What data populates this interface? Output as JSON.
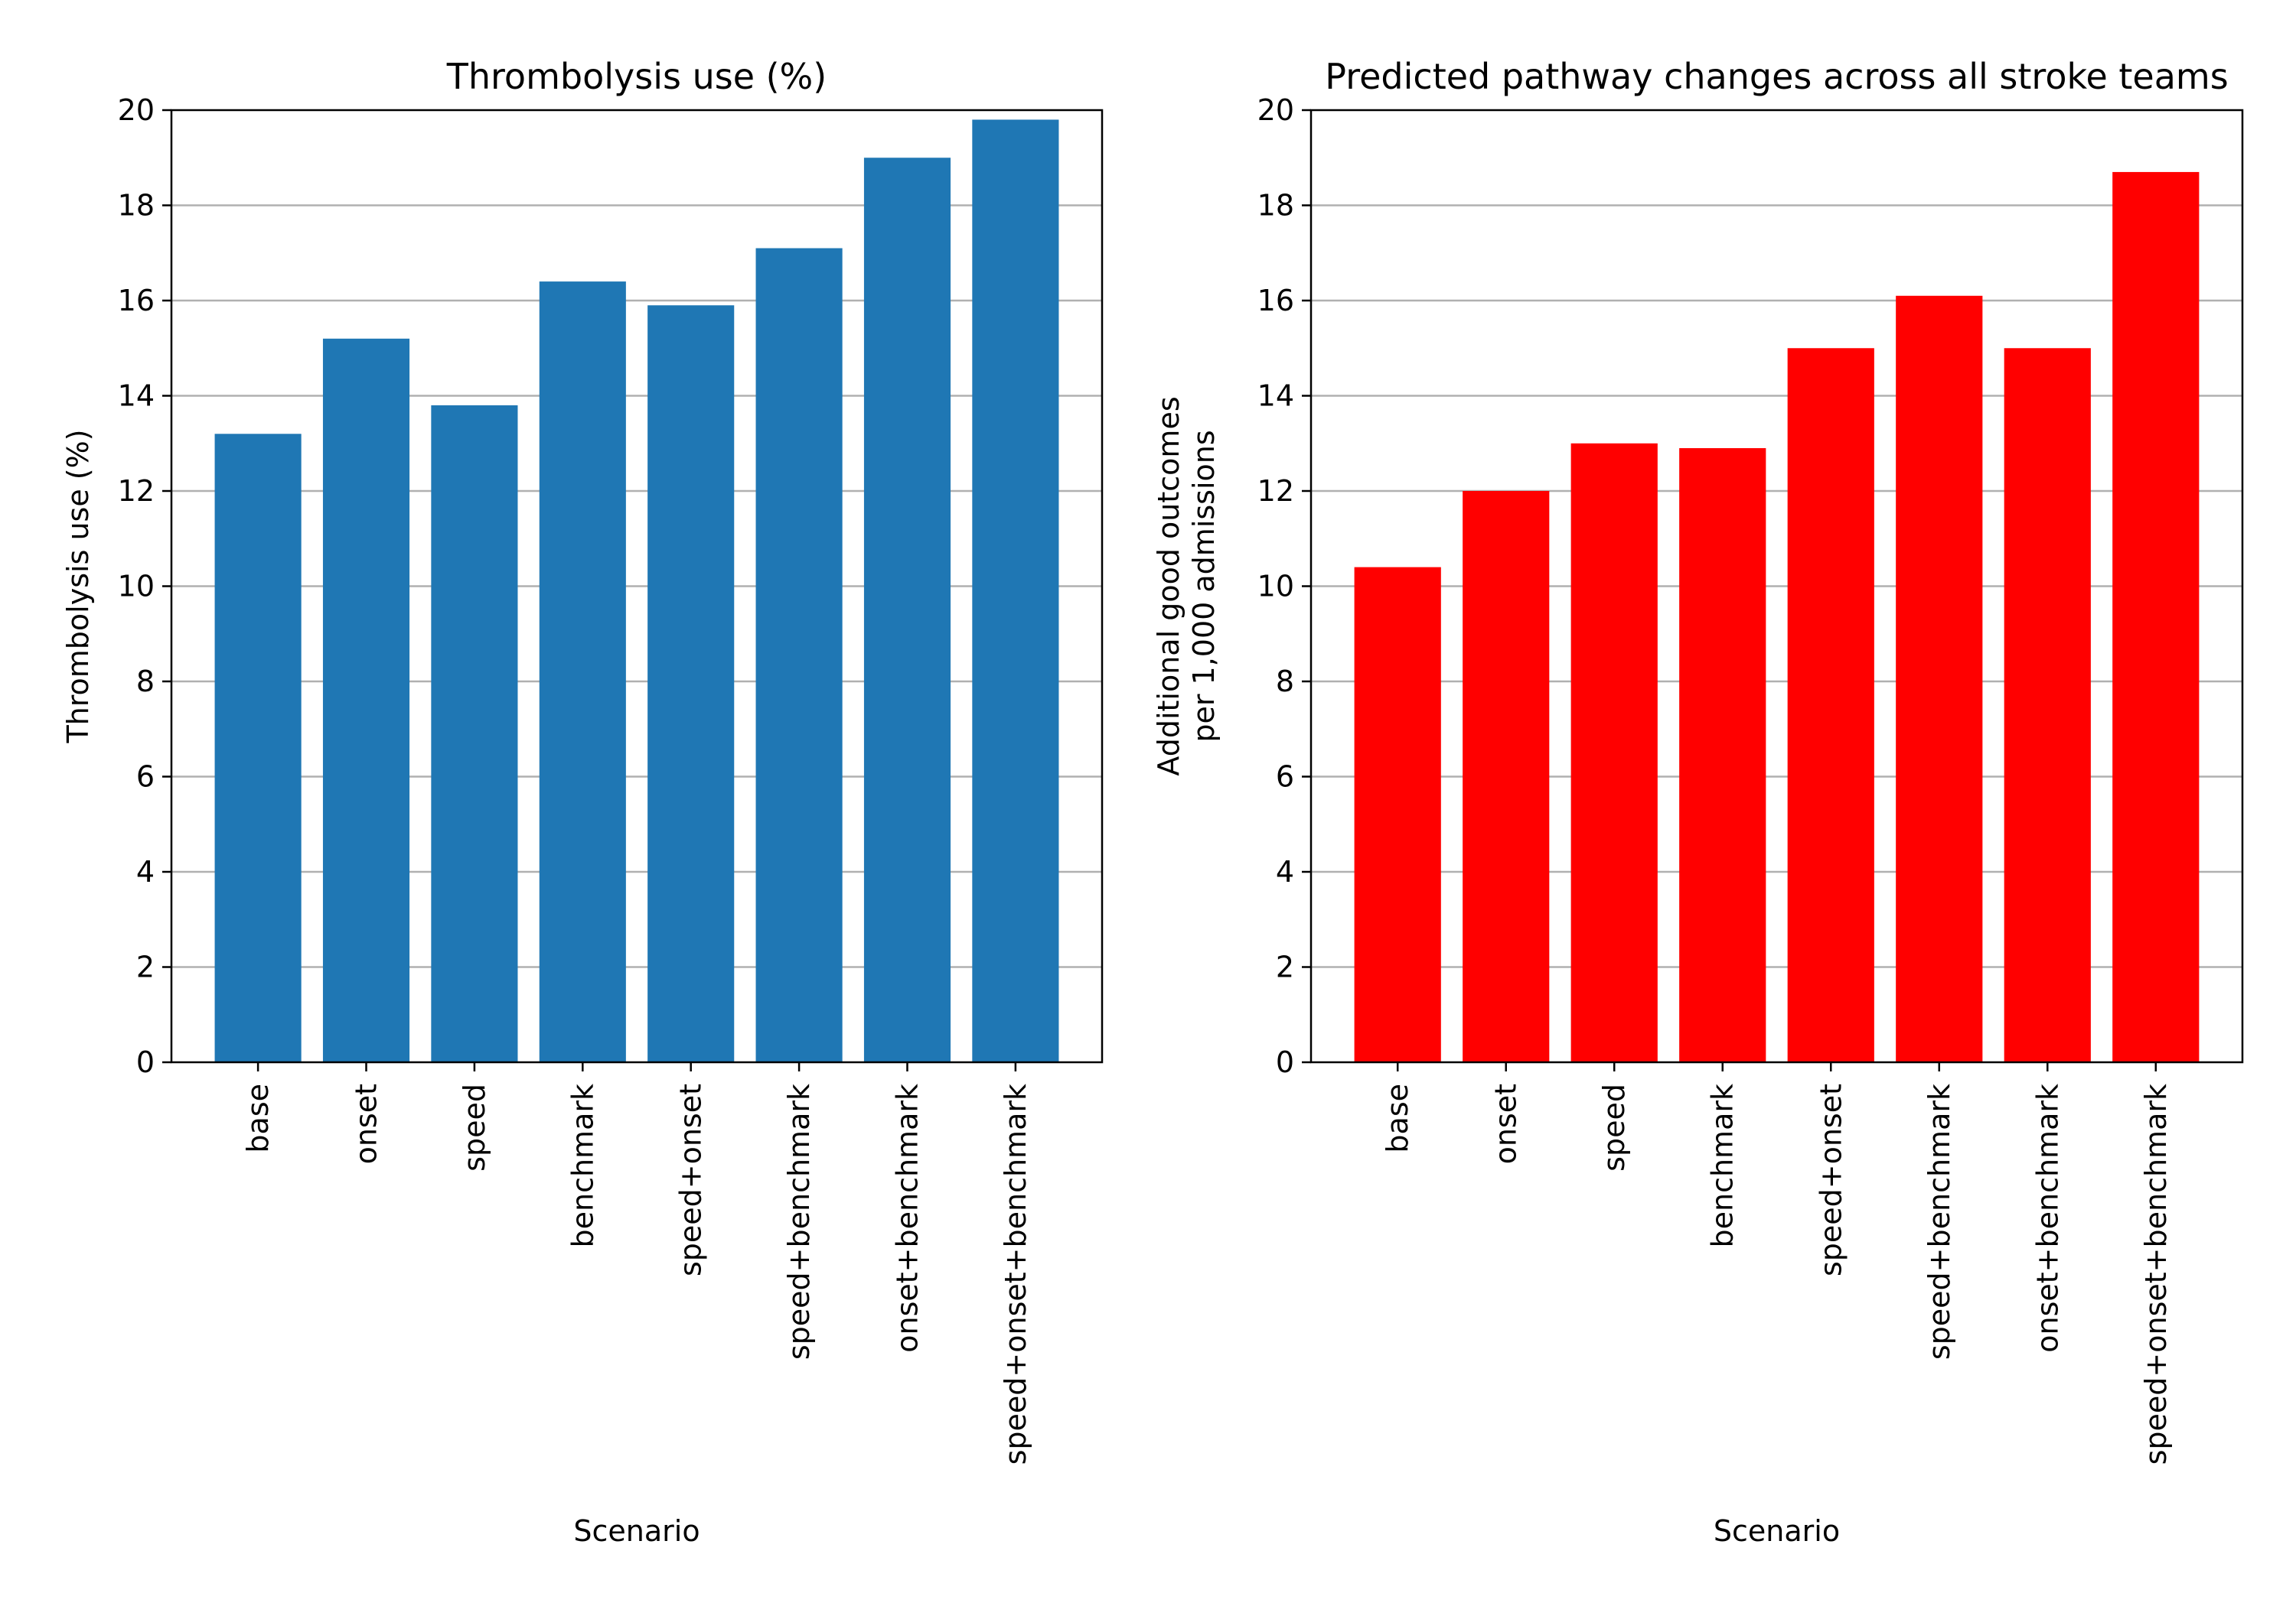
{
  "chart_data": [
    {
      "type": "bar",
      "title": "Thrombolysis use (%)",
      "xlabel": "Scenario",
      "ylabel": [
        "Thrombolysis use (%)"
      ],
      "categories": [
        "base",
        "onset",
        "speed",
        "benchmark",
        "speed+onset",
        "speed+benchmark",
        "onset+benchmark",
        "speed+onset+benchmark"
      ],
      "values": [
        13.2,
        15.2,
        13.8,
        16.4,
        15.9,
        17.1,
        19.0,
        19.8
      ],
      "ylim": [
        0,
        20
      ],
      "yticks": [
        "0",
        "2",
        "4",
        "6",
        "8",
        "10",
        "12",
        "14",
        "16",
        "18",
        "20"
      ],
      "color": "#1f77b4",
      "grid": "y-major"
    },
    {
      "type": "bar",
      "title": "Predicted pathway changes across all stroke teams",
      "xlabel": "Scenario",
      "ylabel": [
        "Additional good outcomes",
        "per 1,000 admissions"
      ],
      "categories": [
        "base",
        "onset",
        "speed",
        "benchmark",
        "speed+onset",
        "speed+benchmark",
        "onset+benchmark",
        "speed+onset+benchmark"
      ],
      "values": [
        10.4,
        12.0,
        13.0,
        12.9,
        15.0,
        16.1,
        15.0,
        18.7
      ],
      "ylim": [
        0,
        20
      ],
      "yticks": [
        "0",
        "2",
        "4",
        "6",
        "8",
        "10",
        "12",
        "14",
        "16",
        "18",
        "20"
      ],
      "color": "#ff0000",
      "grid": "y-major"
    }
  ]
}
